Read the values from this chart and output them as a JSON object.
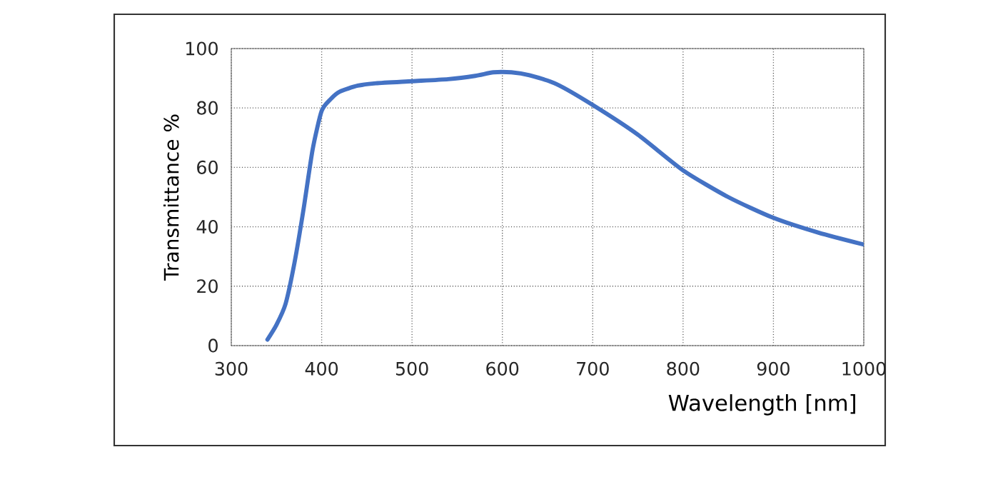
{
  "chart_data": {
    "type": "line",
    "xlabel": "Wavelength [nm]",
    "ylabel": "Transmittance %",
    "x": [
      340,
      350,
      360,
      370,
      380,
      390,
      400,
      410,
      420,
      440,
      460,
      500,
      540,
      570,
      590,
      610,
      630,
      660,
      700,
      750,
      800,
      850,
      900,
      950,
      1000
    ],
    "series": [
      {
        "color": "#4472c4",
        "values": [
          2,
          7,
          14,
          28,
          46,
          66,
          79,
          83,
          85.5,
          87.5,
          88.3,
          89,
          89.7,
          90.8,
          92,
          92,
          91,
          88,
          81,
          71,
          59,
          50,
          43,
          38,
          34
        ]
      }
    ],
    "xlim": [
      300,
      1000
    ],
    "xticks": [
      300,
      400,
      500,
      600,
      700,
      800,
      900,
      1000
    ],
    "ylim": [
      0,
      100
    ],
    "yticks": [
      0,
      20,
      40,
      60,
      80,
      100
    ],
    "grid": true,
    "line_style": "solid",
    "marker": "none"
  }
}
